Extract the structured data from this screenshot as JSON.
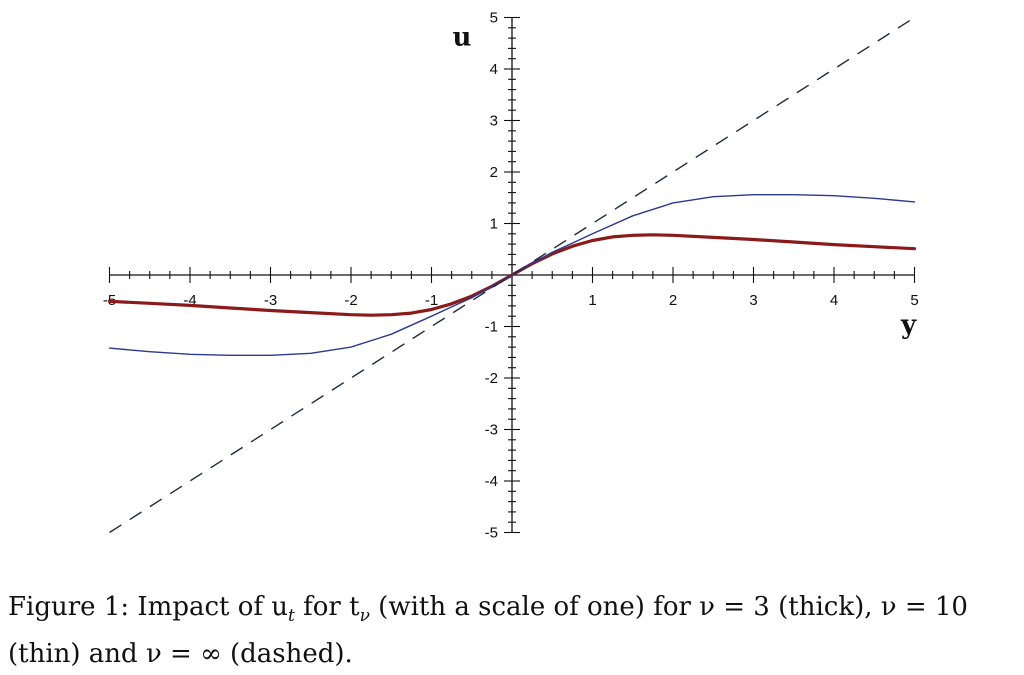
{
  "chart_data": {
    "type": "line",
    "xlabel": "y",
    "ylabel": "u",
    "xlim": [
      -5,
      5
    ],
    "ylim": [
      -5,
      5
    ],
    "x_ticks": [
      "-5",
      "-4",
      "-3",
      "-2",
      "-1",
      "1",
      "2",
      "3",
      "4",
      "5"
    ],
    "y_ticks": [
      "5",
      "4",
      "3",
      "2",
      "1",
      "-1",
      "-2",
      "-3",
      "-4",
      "-5"
    ],
    "grid": false,
    "series": [
      {
        "style": "thick",
        "color": "#8b1a1a",
        "x": [
          -5,
          -4.5,
          -4,
          -3.5,
          -3,
          -2.5,
          -2,
          -1.75,
          -1.5,
          -1.25,
          -1,
          -0.75,
          -0.5,
          -0.25,
          0,
          0.25,
          0.5,
          0.75,
          1,
          1.25,
          1.5,
          1.75,
          2,
          2.5,
          3,
          3.5,
          4,
          4.5,
          5
        ],
        "y": [
          -0.51,
          -0.55,
          -0.59,
          -0.64,
          -0.69,
          -0.73,
          -0.77,
          -0.78,
          -0.77,
          -0.74,
          -0.67,
          -0.56,
          -0.41,
          -0.22,
          0,
          0.22,
          0.41,
          0.56,
          0.67,
          0.74,
          0.77,
          0.78,
          0.77,
          0.73,
          0.69,
          0.64,
          0.59,
          0.55,
          0.51
        ]
      },
      {
        "style": "thin",
        "color": "#2b3990",
        "x": [
          -5,
          -4.5,
          -4,
          -3.5,
          -3,
          -2.5,
          -2,
          -1.5,
          -1,
          -0.75,
          -0.5,
          -0.25,
          0,
          0.25,
          0.5,
          0.75,
          1,
          1.5,
          2,
          2.5,
          3,
          3.5,
          4,
          4.5,
          5
        ],
        "y": [
          -1.42,
          -1.49,
          -1.54,
          -1.56,
          -1.56,
          -1.52,
          -1.4,
          -1.15,
          -0.8,
          -0.62,
          -0.44,
          -0.23,
          0,
          0.23,
          0.44,
          0.62,
          0.8,
          1.15,
          1.4,
          1.52,
          1.56,
          1.56,
          1.54,
          1.49,
          1.42
        ]
      },
      {
        "style": "dashed",
        "color": "#1f2a44",
        "x": [
          -5,
          5
        ],
        "y": [
          -5,
          5
        ]
      }
    ]
  },
  "caption": {
    "line1": "Figure 1: Impact of u",
    "line1_sub": "t",
    "line1_mid": " for t",
    "line1_sub2": "ν",
    "line1_end": " (with a scale of one) for ν = 3 (thick), ν = 10",
    "line2": "(thin) and ν = ∞ (dashed)."
  }
}
